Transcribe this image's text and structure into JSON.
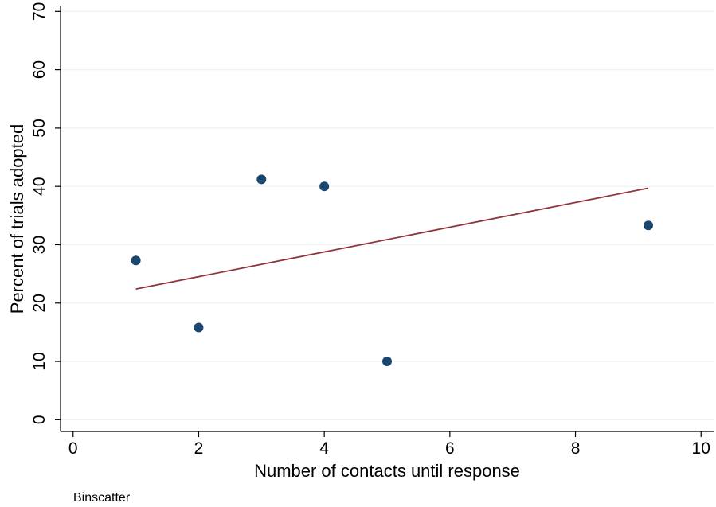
{
  "chart_data": {
    "type": "scatter",
    "title": "",
    "xlabel": "Number of contacts until response",
    "ylabel": "Percent of trials adopted",
    "note": "Binscatter",
    "xlim": [
      -0.2,
      10.2
    ],
    "ylim": [
      -2,
      71
    ],
    "xticks": [
      0,
      2,
      4,
      6,
      8,
      10
    ],
    "yticks": [
      0,
      10,
      20,
      30,
      40,
      50,
      60,
      70
    ],
    "grid": true,
    "legend": "none",
    "colors": {
      "points": "#1a476f",
      "fit_line": "#90353b",
      "grid": "#eaf2f3",
      "axis": "#000000"
    },
    "series": [
      {
        "type": "scatter",
        "x": [
          1,
          2,
          3,
          4,
          5,
          9.16
        ],
        "y": [
          27.3,
          15.8,
          41.2,
          40.0,
          10.0,
          33.3
        ]
      },
      {
        "type": "line",
        "x": [
          1,
          9.16
        ],
        "y": [
          22.4,
          39.7
        ]
      }
    ]
  }
}
